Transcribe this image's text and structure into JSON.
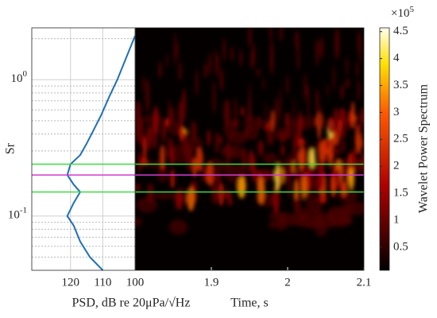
{
  "chart_data": [
    {
      "type": "line",
      "xlabel": "PSD, dB re 20μPa/√Hz",
      "ylabel": "Sr",
      "xlim": [
        132,
        100
      ],
      "xticks": [
        120,
        110,
        100
      ],
      "ylim": [
        0.04,
        2.4
      ],
      "log_y": true,
      "yticks": [
        {
          "value": 1,
          "label": "10^0"
        },
        {
          "value": 0.1,
          "label": "10^-1"
        }
      ],
      "yminorticks": [
        0.05,
        0.06,
        0.07,
        0.08,
        0.09,
        0.2,
        0.3,
        0.4,
        0.5,
        0.6,
        0.7,
        0.8,
        0.9,
        2
      ],
      "grid": true,
      "series": [
        {
          "color": "#1f6fb5",
          "x": [
            110,
            114,
            117,
            119,
            121,
            119,
            117,
            119,
            121,
            120,
            117,
            115,
            113,
            110.5,
            108,
            105.5,
            103,
            100
          ],
          "y": [
            0.04,
            0.05,
            0.065,
            0.085,
            0.1,
            0.125,
            0.15,
            0.17,
            0.2,
            0.24,
            0.28,
            0.34,
            0.42,
            0.55,
            0.75,
            1,
            1.4,
            2.1
          ]
        }
      ],
      "hlines": [
        {
          "value": 0.24,
          "color": "#3ddc3d"
        },
        {
          "value": 0.2,
          "color": "#d23cd2"
        },
        {
          "value": 0.15,
          "color": "#3ddc3d"
        }
      ]
    },
    {
      "type": "heatmap",
      "xlabel": "Time, s",
      "xlim": [
        1.8,
        2.1
      ],
      "xticks": [
        1.9,
        2,
        2.1
      ],
      "colorbar_label": "Wavelet Power Spectrum",
      "colorbar_multiplier": "×10",
      "colorbar_exponent": "5",
      "clim": [
        0.07,
        4.57
      ],
      "cticks": [
        0.5,
        1,
        1.5,
        2,
        2.5,
        3,
        3.5,
        4,
        4.5
      ]
    }
  ]
}
